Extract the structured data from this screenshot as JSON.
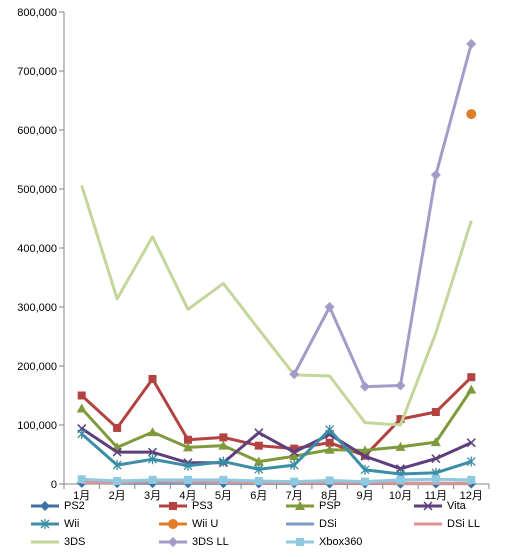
{
  "chart_data": {
    "type": "line",
    "title": "",
    "xlabel": "",
    "ylabel": "",
    "categories": [
      "1月",
      "2月",
      "3月",
      "4月",
      "5月",
      "6月",
      "7月",
      "8月",
      "9月",
      "10月",
      "11月",
      "12月"
    ],
    "ylim": [
      0,
      800000
    ],
    "yticks": [
      "0",
      "100,000",
      "200,000",
      "300,000",
      "400,000",
      "500,000",
      "600,000",
      "700,000",
      "800,000"
    ],
    "legend_position": "bottom",
    "series": [
      {
        "name": "PS2",
        "color": "#3b6fa6",
        "marker": "diamond",
        "values": [
          2000,
          1500,
          1500,
          1200,
          1200,
          1000,
          1000,
          800,
          800,
          700,
          700,
          600
        ]
      },
      {
        "name": "PS3",
        "color": "#b34340",
        "marker": "square",
        "values": [
          150000,
          95000,
          178000,
          75000,
          79000,
          65000,
          60000,
          70000,
          48000,
          110000,
          122000,
          181000
        ]
      },
      {
        "name": "PSP",
        "color": "#7f9a3c",
        "marker": "triangle",
        "values": [
          128000,
          62000,
          88000,
          62000,
          65000,
          38000,
          47000,
          58000,
          57000,
          63000,
          71000,
          160000
        ]
      },
      {
        "name": "Vita",
        "color": "#5e3f7d",
        "marker": "x",
        "values": [
          94000,
          54000,
          54000,
          36000,
          36000,
          87000,
          54000,
          84000,
          47000,
          26000,
          43000,
          70000
        ]
      },
      {
        "name": "Wii",
        "color": "#3a8ea5",
        "marker": "asterisk",
        "values": [
          85000,
          32000,
          42000,
          31000,
          38000,
          25000,
          32000,
          92000,
          24000,
          17000,
          19000,
          38000
        ]
      },
      {
        "name": "Wii U",
        "color": "#e07d29",
        "marker": "circle",
        "values": [
          null,
          null,
          null,
          null,
          null,
          null,
          null,
          null,
          null,
          null,
          null,
          627000
        ]
      },
      {
        "name": "DSi",
        "color": "#7a9cc7",
        "marker": "none",
        "values": [
          3000,
          2500,
          2500,
          2000,
          2000,
          1800,
          1700,
          1500,
          1500,
          1300,
          1200,
          1200
        ]
      },
      {
        "name": "DSi LL",
        "color": "#d99594",
        "marker": "none",
        "values": [
          2500,
          2000,
          5000,
          4000,
          3000,
          2000,
          2000,
          1500,
          1500,
          1000,
          1000,
          1000
        ]
      },
      {
        "name": "3DS",
        "color": "#c3d69b",
        "marker": "none",
        "values": [
          506000,
          314000,
          419000,
          296000,
          340000,
          262000,
          185000,
          183000,
          104000,
          100000,
          256000,
          446000
        ]
      },
      {
        "name": "3DS LL",
        "color": "#a59bc8",
        "marker": "diamond",
        "values": [
          null,
          null,
          null,
          null,
          null,
          null,
          186000,
          300000,
          165000,
          167000,
          524000,
          746000
        ]
      },
      {
        "name": "Xbox360",
        "color": "#8fc9df",
        "marker": "square",
        "values": [
          8000,
          5000,
          7000,
          7000,
          7000,
          5000,
          4000,
          6000,
          4000,
          7000,
          8000,
          7000
        ]
      }
    ]
  }
}
